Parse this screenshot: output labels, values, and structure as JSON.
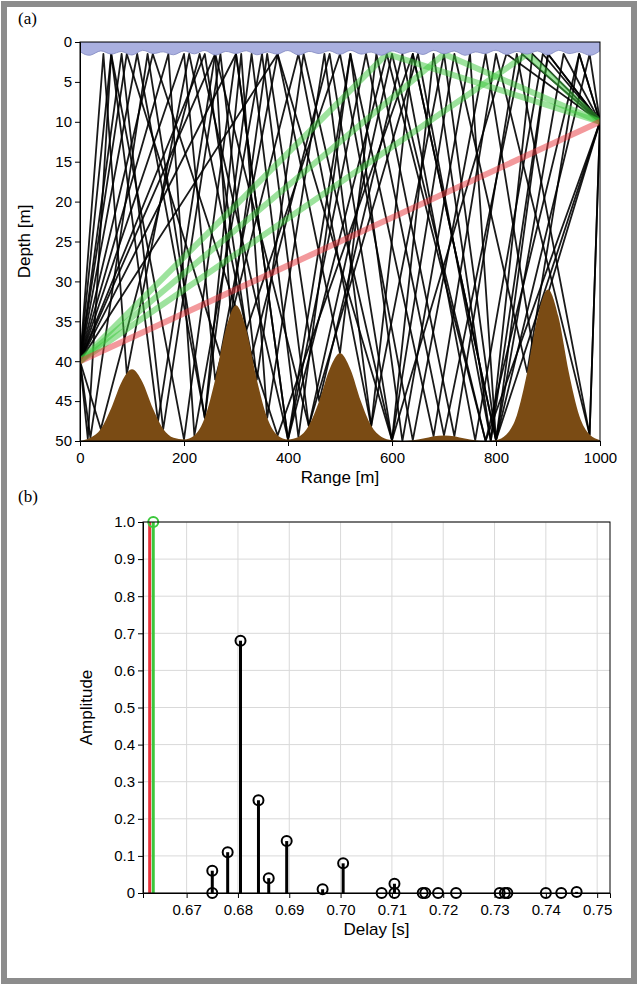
{
  "chart_data": [
    {
      "type": "line",
      "title": "(a)",
      "x_label": "Range [m]",
      "y_label": "Depth [m]",
      "xlim": [
        0,
        1000
      ],
      "ylim": [
        50,
        0
      ],
      "xticks": [
        0,
        200,
        400,
        600,
        800,
        1000
      ],
      "yticks": [
        0,
        5,
        10,
        15,
        20,
        25,
        30,
        35,
        40,
        45,
        50
      ],
      "grid": false,
      "series": [
        {
          "type": "line",
          "color": "#000000",
          "x": [
            0,
            60,
            200,
            300,
            400,
            550,
            700,
            850,
            1000
          ],
          "values": [
            40,
            1.5,
            49.8,
            1.5,
            49.8,
            1.5,
            49.3,
            1.5,
            10
          ]
        },
        {
          "type": "line",
          "color": "#000000",
          "x": [
            0,
            20,
            130,
            240,
            330,
            420,
            520,
            620,
            750,
            800,
            900,
            1000
          ],
          "values": [
            40,
            49.6,
            1.5,
            47.1,
            1.5,
            49.5,
            1.5,
            50,
            1.5,
            49.9,
            1.5,
            10
          ]
        },
        {
          "type": "line",
          "color": "#000000",
          "x": [
            0,
            80,
            160,
            270,
            340,
            430,
            600,
            680,
            790,
            870,
            1000
          ],
          "values": [
            40,
            1.5,
            48.5,
            1.5,
            42.3,
            1.5,
            49.9,
            1.5,
            50,
            1.5,
            10
          ]
        },
        {
          "type": "line",
          "color": "#000000",
          "x": [
            0,
            110,
            240,
            310,
            360,
            470,
            560,
            640,
            800,
            980,
            1000
          ],
          "values": [
            40,
            1.5,
            47.1,
            1.5,
            47.1,
            1.5,
            48.1,
            1.5,
            49.9,
            1.5,
            10
          ]
        },
        {
          "type": "line",
          "color": "#000000",
          "x": [
            0,
            240,
            320,
            500,
            640,
            780,
            870,
            1000
          ],
          "values": [
            40,
            1.5,
            36.1,
            1.5,
            49.9,
            1.5,
            38,
            10
          ]
        },
        {
          "type": "line",
          "color": "#000000",
          "x": [
            0,
            170,
            220,
            350,
            440,
            600,
            780,
            1000
          ],
          "values": [
            40,
            1.5,
            49.3,
            1.5,
            48.1,
            1.5,
            50,
            10
          ]
        },
        {
          "type": "line",
          "color": "#000000",
          "x": [
            0,
            300,
            400,
            520,
            680,
            800,
            980,
            1000
          ],
          "values": [
            40,
            1.5,
            49.8,
            1.5,
            49.4,
            1.5,
            49.2,
            10
          ]
        },
        {
          "type": "line",
          "color": "#000000",
          "x": [
            0,
            200,
            260,
            420,
            560,
            700,
            800,
            930,
            1000
          ],
          "values": [
            40,
            1.5,
            42.3,
            1.5,
            48.1,
            1.5,
            49.9,
            1.5,
            10
          ]
        },
        {
          "type": "line",
          "color": "#000000",
          "x": [
            0,
            45,
            90,
            210,
            330,
            480,
            600,
            720,
            860,
            960,
            1000
          ],
          "values": [
            40,
            1.5,
            41.6,
            1.5,
            39.3,
            1.5,
            49.9,
            1.5,
            41.4,
            1.5,
            10
          ]
        },
        {
          "type": "line",
          "color": "#000000",
          "x": [
            0,
            140,
            380,
            640,
            800,
            1000
          ],
          "values": [
            40,
            1.5,
            49.3,
            1.5,
            49.9,
            10
          ]
        },
        {
          "type": "line",
          "color": "#000000",
          "x": [
            0,
            380,
            600,
            820,
            1000
          ],
          "values": [
            40,
            1.5,
            49.9,
            1.5,
            10
          ]
        },
        {
          "type": "line",
          "color": "#000000",
          "x": [
            0,
            40,
            230,
            400,
            590,
            780,
            960,
            1000
          ],
          "values": [
            40,
            48.5,
            1.5,
            49.8,
            1.5,
            50,
            1.5,
            10
          ]
        },
        {
          "type": "line",
          "color": "#000000",
          "x": [
            0,
            15,
            60,
            150,
            260,
            440,
            650,
            790,
            900,
            1000
          ],
          "values": [
            40,
            49.7,
            1.5,
            47.5,
            1.5,
            48.1,
            1.5,
            50,
            1.5,
            10
          ]
        },
        {
          "type": "line",
          "color": "#000000",
          "x": [
            0,
            260,
            290,
            360,
            460,
            620,
            760,
            890,
            1000
          ],
          "values": [
            40,
            1.5,
            34.5,
            1.5,
            45,
            1.5,
            49.9,
            1.5,
            10
          ]
        },
        {
          "type": "line",
          "color": "#000000",
          "x": [
            0,
            90,
            270,
            380,
            500,
            570,
            720,
            840,
            980,
            1000
          ],
          "values": [
            40,
            1.5,
            39.3,
            1.5,
            39,
            1.5,
            49.4,
            1.5,
            49.2,
            10
          ]
        },
        {
          "type": "line",
          "color": "#3cc83c",
          "x": [
            0,
            590,
            1000
          ],
          "values": [
            40,
            1.5,
            10
          ]
        },
        {
          "type": "line",
          "color": "#3cc83c",
          "x": [
            0,
            700,
            1000
          ],
          "values": [
            40,
            1.5,
            10
          ]
        },
        {
          "type": "line",
          "color": "#3cc83c",
          "x": [
            0,
            860,
            1000
          ],
          "values": [
            40,
            1.5,
            10
          ]
        },
        {
          "type": "line",
          "color": "#e8333a",
          "x": [
            0,
            1000
          ],
          "values": [
            40,
            10
          ]
        },
        {
          "type": "area",
          "color": "#7a4b14",
          "x": [
            0,
            20,
            40,
            60,
            80,
            100,
            120,
            140,
            160,
            180,
            200,
            220,
            240,
            260,
            280,
            300,
            320,
            340,
            360,
            380,
            400,
            420,
            440,
            460,
            480,
            500,
            520,
            540,
            560,
            580,
            600,
            620,
            640,
            660,
            680,
            700,
            720,
            740,
            760,
            780,
            800,
            820,
            840,
            860,
            880,
            900,
            920,
            940,
            960,
            980,
            1000
          ],
          "values": [
            50.0,
            49.6,
            48.5,
            45.9,
            42.6,
            41.0,
            42.6,
            45.9,
            48.5,
            49.6,
            49.8,
            49.3,
            47.1,
            42.3,
            36.1,
            33.0,
            36.1,
            42.3,
            47.1,
            49.3,
            49.8,
            49.5,
            48.1,
            45.0,
            41.0,
            39.0,
            41.0,
            45.0,
            48.1,
            49.5,
            49.9,
            50.0,
            49.9,
            49.7,
            49.4,
            49.3,
            49.4,
            49.7,
            49.9,
            50.0,
            49.9,
            49.2,
            46.8,
            41.4,
            34.4,
            31.0,
            34.4,
            41.4,
            46.8,
            49.2,
            49.9
          ]
        },
        {
          "type": "area",
          "color": "#aab0e0",
          "x": [
            0,
            20,
            40,
            60,
            80,
            100,
            120,
            140,
            160,
            180,
            200,
            220,
            240,
            260,
            280,
            300,
            320,
            340,
            360,
            380,
            400,
            420,
            440,
            460,
            480,
            500,
            520,
            540,
            560,
            580,
            600,
            620,
            640,
            660,
            680,
            700,
            720,
            740,
            760,
            780,
            800,
            820,
            840,
            860,
            880,
            900,
            920,
            940,
            960,
            980,
            1000
          ],
          "values": [
            1.2,
            2.0,
            0.7,
            1.9,
            0.8,
            2.1,
            0.6,
            1.8,
            0.9,
            2.0,
            0.7,
            1.9,
            0.6,
            2.1,
            0.8,
            1.8,
            0.7,
            2.0,
            0.9,
            1.9,
            0.6,
            2.1,
            0.8,
            1.8,
            0.7,
            2.0,
            0.6,
            1.9,
            0.9,
            2.1,
            0.7,
            1.8,
            0.8,
            2.0,
            0.6,
            1.9,
            0.7,
            2.1,
            0.9,
            1.8,
            0.6,
            2.0,
            0.8,
            1.9,
            0.7,
            2.1,
            0.6,
            1.8,
            0.9,
            2.0,
            1.1
          ]
        }
      ]
    },
    {
      "type": "stem",
      "title": "(b)",
      "x_label": "Delay [s]",
      "y_label": "Amplitude",
      "xlim": [
        0.6615,
        0.7525
      ],
      "ylim": [
        0,
        1
      ],
      "xticks": [
        0.67,
        0.68,
        0.69,
        {
          "value": 0.7,
          "label": "0.70"
        },
        0.71,
        0.72,
        0.73,
        0.74,
        0.75
      ],
      "yticks": [
        0,
        0.1,
        0.2,
        0.3,
        0.4,
        0.5,
        0.6,
        0.7,
        0.8,
        0.9,
        {
          "value": 1,
          "label": "1.0"
        }
      ],
      "grid": true,
      "series": [
        {
          "color": "#000000",
          "marker": "circle",
          "x": [
            0.675,
            0.675,
            0.678,
            0.6805,
            0.684,
            0.686,
            0.6895,
            0.6965,
            0.7005,
            0.708,
            0.7105,
            0.7105,
            0.716,
            0.7165,
            0.719,
            0.7225,
            0.731,
            0.732,
            0.7325,
            0.74,
            0.743,
            0.746
          ],
          "values": [
            0.06,
            0,
            0.11,
            0.68,
            0.25,
            0.04,
            0.14,
            0.01,
            0.08,
            0,
            0.025,
            0,
            0,
            0,
            0,
            0,
            0,
            0,
            0,
            0,
            0,
            0.003
          ]
        },
        {
          "color": "#e8333a",
          "marker": "none",
          "x": [
            0.6628
          ],
          "values": [
            1
          ]
        },
        {
          "color": "#3cc83c",
          "marker": "circle",
          "x": [
            0.6635
          ],
          "values": [
            1
          ]
        }
      ]
    }
  ]
}
